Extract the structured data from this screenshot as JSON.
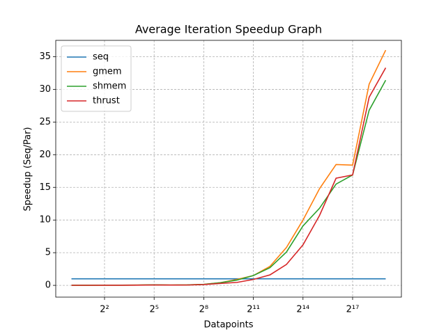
{
  "chart_data": {
    "type": "line",
    "title": "Average Iteration Speedup Graph",
    "x_label": "Datapoints",
    "y_label": "Speedup (Seq/Par)",
    "x": [
      1,
      2,
      4,
      8,
      16,
      32,
      64,
      128,
      256,
      512,
      1024,
      2048,
      4096,
      8192,
      16384,
      32768,
      65536,
      131072,
      262144,
      524288
    ],
    "series": [
      {
        "name": "seq",
        "color": "#1f77b4",
        "values": [
          1,
          1,
          1,
          1,
          1,
          1,
          1,
          1,
          1,
          1,
          1,
          1,
          1,
          1,
          1,
          1,
          1,
          1,
          1,
          1
        ]
      },
      {
        "name": "gmem",
        "color": "#ff7f0e",
        "values": [
          0.02,
          0.02,
          0.03,
          0.03,
          0.04,
          0.08,
          0.05,
          0.07,
          0.15,
          0.4,
          0.9,
          1.5,
          2.9,
          5.8,
          10,
          14.8,
          18.5,
          18.4,
          30.8,
          36
        ]
      },
      {
        "name": "shmem",
        "color": "#2ca02c",
        "values": [
          0.02,
          0.02,
          0.03,
          0.03,
          0.04,
          0.08,
          0.05,
          0.07,
          0.15,
          0.4,
          0.8,
          1.5,
          2.7,
          5.1,
          9.1,
          11.8,
          15.5,
          16.9,
          26.8,
          31.4
        ]
      },
      {
        "name": "thrust",
        "color": "#d62728",
        "values": [
          0.01,
          0.01,
          0.02,
          0.02,
          0.03,
          0.06,
          0.04,
          0.05,
          0.12,
          0.3,
          0.45,
          0.9,
          1.6,
          3.2,
          6.2,
          10.7,
          16.4,
          16.9,
          28.8,
          33.3
        ]
      }
    ],
    "log_x": true,
    "log_base": 2,
    "xlim": [
      0.518,
      1012800
    ],
    "ylim": [
      -1.8,
      37.5
    ],
    "xticks": [
      {
        "value": 4,
        "label": "2²"
      },
      {
        "value": 32,
        "label": "2⁵"
      },
      {
        "value": 256,
        "label": "2⁸"
      },
      {
        "value": 2048,
        "label": "2¹¹"
      },
      {
        "value": 16384,
        "label": "2¹⁴"
      },
      {
        "value": 131072,
        "label": "2¹⁷"
      }
    ],
    "yticks": [
      0,
      5,
      10,
      15,
      20,
      25,
      30,
      35
    ],
    "grid": true,
    "legend": "upper left"
  }
}
